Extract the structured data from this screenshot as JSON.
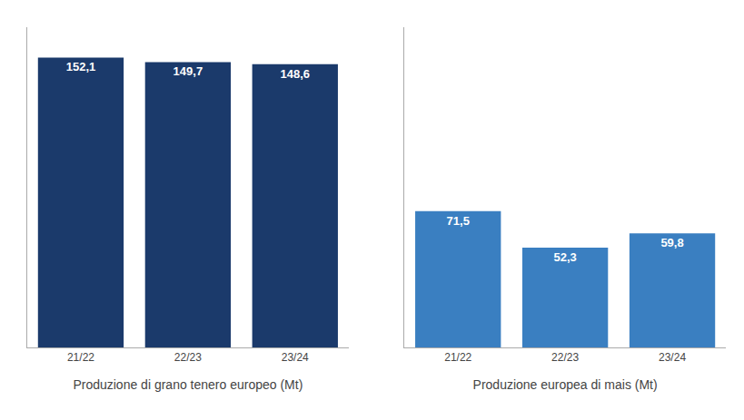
{
  "chart_data": [
    {
      "type": "bar",
      "xlabel": "Produzione di grano tenero europeo (Mt)",
      "categories": [
        "21/22",
        "22/23",
        "23/24"
      ],
      "values": [
        152.1,
        149.7,
        148.6
      ],
      "value_labels": [
        "152,1",
        "149,7",
        "148,6"
      ],
      "color": "#1b3a6b",
      "ylim": [
        0,
        168
      ],
      "data_labels": true,
      "tick_labels": "x",
      "grid": false
    },
    {
      "type": "bar",
      "xlabel": "Produzione europea di mais (Mt)",
      "categories": [
        "21/22",
        "22/23",
        "23/24"
      ],
      "values": [
        71.5,
        52.3,
        59.8
      ],
      "value_labels": [
        "71,5",
        "52,3",
        "59,8"
      ],
      "color": "#3a7fc1",
      "ylim": [
        0,
        168
      ],
      "data_labels": true,
      "tick_labels": "x",
      "grid": false
    }
  ]
}
